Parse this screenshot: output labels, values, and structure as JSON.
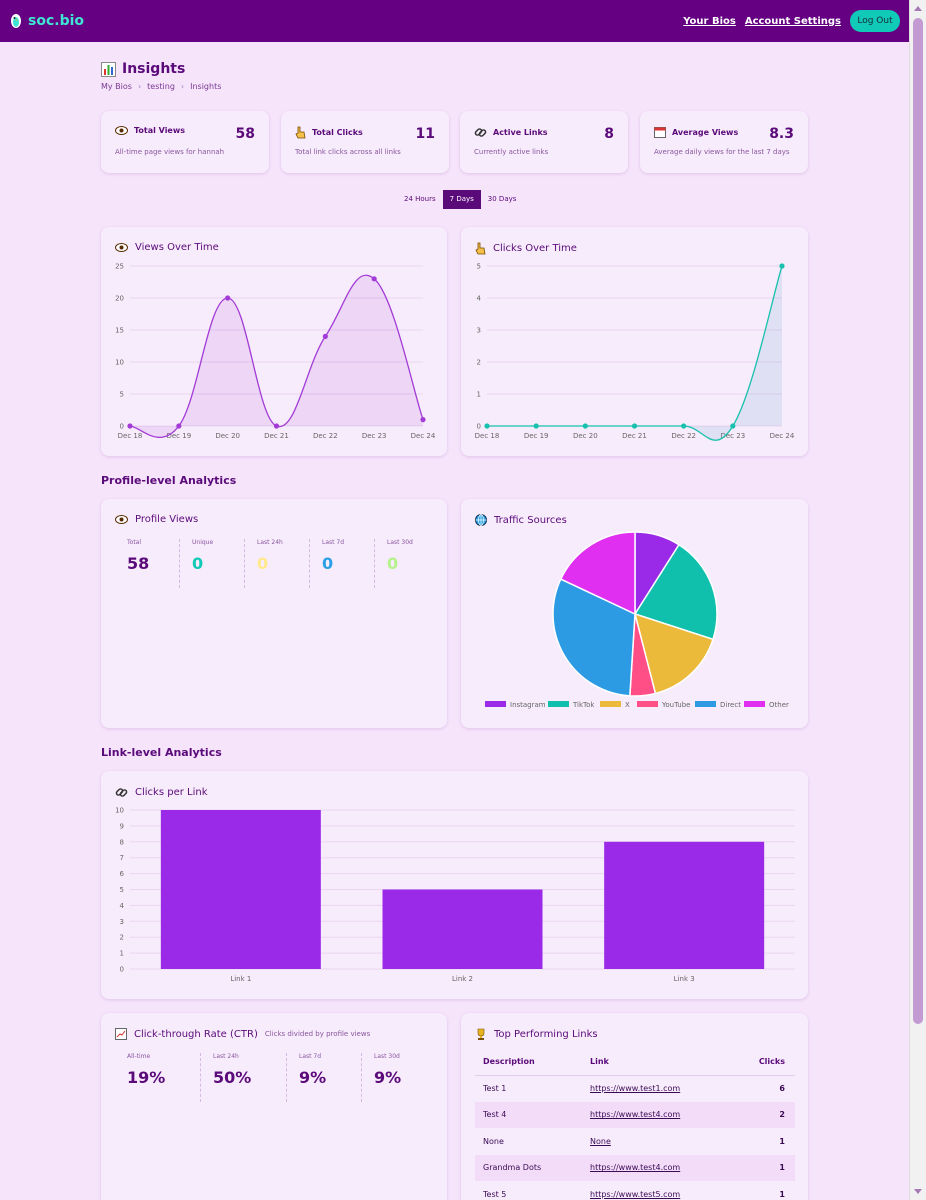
{
  "navbar": {
    "brand": "soc.bio",
    "your_bios": "Your Bios",
    "account_settings": "Account Settings",
    "logout": "Log Out"
  },
  "page": {
    "title": "Insights",
    "breadcrumb": [
      "My Bios",
      "testing",
      "Insights"
    ]
  },
  "stats": [
    {
      "label": "Total Views",
      "value": "58",
      "desc": "All-time page views for hannah",
      "icon": "eye-icon"
    },
    {
      "label": "Total Clicks",
      "value": "11",
      "desc": "Total link clicks across all links",
      "icon": "pointer-hand-icon"
    },
    {
      "label": "Active Links",
      "value": "8",
      "desc": "Currently active links",
      "icon": "link-icon"
    },
    {
      "label": "Average Views",
      "value": "8.3",
      "desc": "Average daily views for the last 7 days",
      "icon": "calendar-icon"
    }
  ],
  "range": {
    "options": [
      "24 Hours",
      "7 Days",
      "30 Days"
    ],
    "active": "7 Days"
  },
  "views_chart_title": "Views Over Time",
  "clicks_chart_title": "Clicks Over Time",
  "profile_section_title": "Profile-level Analytics",
  "profile_views": {
    "title": "Profile Views",
    "items": [
      {
        "label": "Total",
        "value": "58",
        "color": "#5b0a7a"
      },
      {
        "label": "Unique",
        "value": "0",
        "color": "#10c9b7"
      },
      {
        "label": "Last 24h",
        "value": "0",
        "color": "#ffe98a"
      },
      {
        "label": "Last 7d",
        "value": "0",
        "color": "#2aa0e6"
      },
      {
        "label": "Last 30d",
        "value": "0",
        "color": "#b6f28a"
      }
    ]
  },
  "traffic_title": "Traffic Sources",
  "link_section_title": "Link-level Analytics",
  "clicks_per_link_title": "Clicks per Link",
  "ctr": {
    "title": "Click-through Rate (CTR)",
    "subtitle": "Clicks divided by profile views",
    "items": [
      {
        "label": "All-time",
        "value": "19%"
      },
      {
        "label": "Last 24h",
        "value": "50%"
      },
      {
        "label": "Last 7d",
        "value": "9%"
      },
      {
        "label": "Last 30d",
        "value": "9%"
      }
    ]
  },
  "top_links": {
    "title": "Top Performing Links",
    "headers": [
      "Description",
      "Link",
      "Clicks"
    ],
    "rows": [
      {
        "desc": "Test 1",
        "link": "https://www.test1.com",
        "clicks": "6"
      },
      {
        "desc": "Test 4",
        "link": "https://www.test4.com",
        "clicks": "2"
      },
      {
        "desc": "None",
        "link": "None",
        "clicks": "1"
      },
      {
        "desc": "Grandma Dots",
        "link": "https://www.test4.com",
        "clicks": "1"
      },
      {
        "desc": "Test 5",
        "link": "https://www.test5.com",
        "clicks": "1"
      }
    ]
  },
  "chart_data": [
    {
      "type": "line",
      "x": [
        "Dec 18",
        "Dec 19",
        "Dec 20",
        "Dec 21",
        "Dec 22",
        "Dec 23",
        "Dec 24"
      ],
      "series": [
        {
          "values": [
            0,
            0,
            20,
            0,
            14,
            23,
            1
          ],
          "color": "#a33bd6"
        }
      ],
      "ylim": [
        0,
        25
      ],
      "yticks": [
        0,
        5,
        10,
        15,
        20,
        25
      ],
      "grid": true
    },
    {
      "type": "line",
      "x": [
        "Dec 18",
        "Dec 19",
        "Dec 20",
        "Dec 21",
        "Dec 22",
        "Dec 23",
        "Dec 24"
      ],
      "series": [
        {
          "values": [
            0,
            0,
            0,
            0,
            0,
            0,
            5
          ],
          "color": "#17c1ad"
        }
      ],
      "ylim": [
        0,
        5
      ],
      "yticks": [
        0,
        1,
        2,
        3,
        4,
        5
      ],
      "grid": true
    },
    {
      "type": "pie",
      "categories": [
        "Instagram",
        "TikTok",
        "X",
        "YouTube",
        "Direct",
        "Other"
      ],
      "values": [
        9,
        21,
        16,
        5,
        31,
        18
      ],
      "colors": [
        "#9b2ae8",
        "#10c0ad",
        "#ecba3a",
        "#ff4f86",
        "#2d9be3",
        "#e02ff0"
      ],
      "legend": "bottom"
    },
    {
      "type": "bar",
      "categories": [
        "Link 1",
        "Link 2",
        "Link 3"
      ],
      "values": [
        10,
        5,
        8
      ],
      "color": "#9b2ae8",
      "ylim": [
        0,
        10
      ],
      "yticks": [
        0,
        1,
        2,
        3,
        4,
        5,
        6,
        7,
        8,
        9,
        10
      ],
      "grid": true
    }
  ]
}
